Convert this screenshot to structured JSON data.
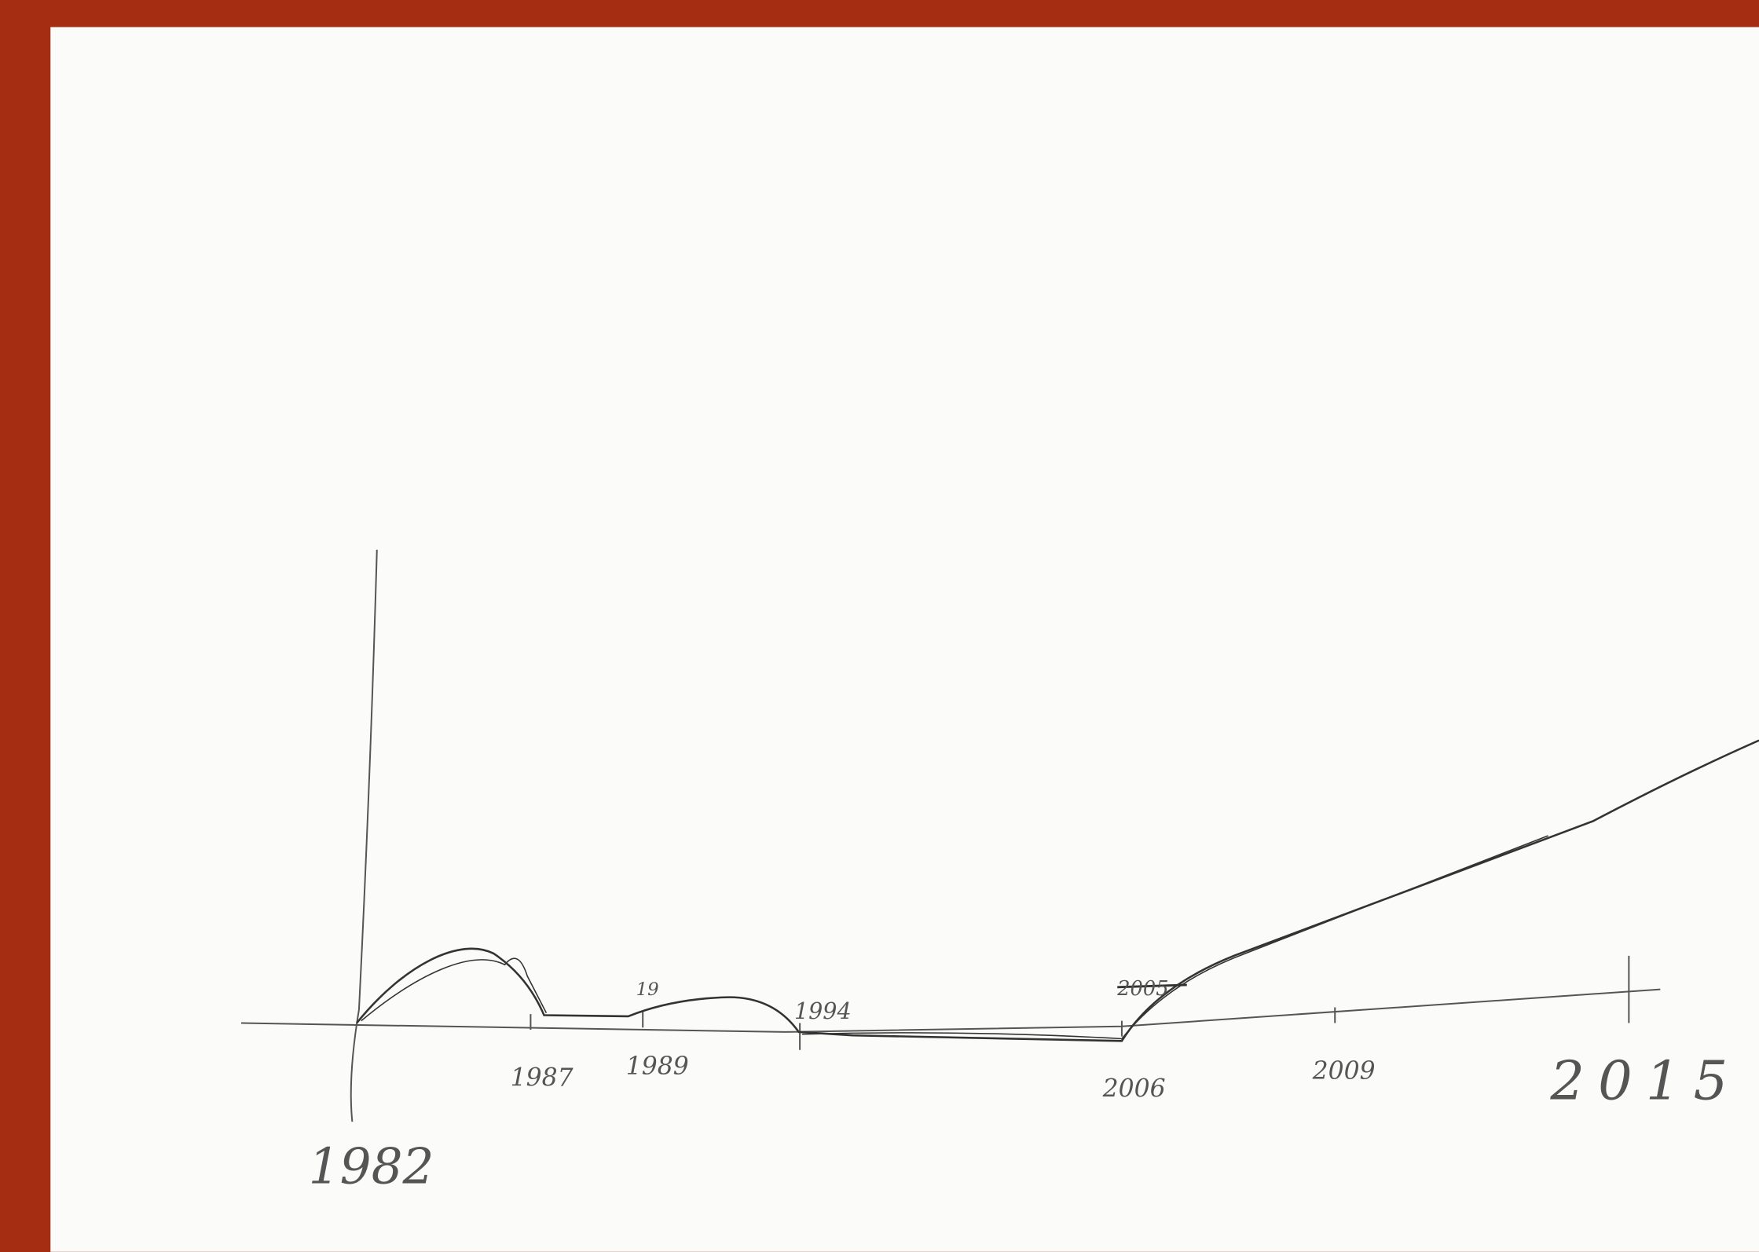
{
  "labels": [
    "1982",
    "1987",
    "19",
    "1989",
    "1994",
    "2005",
    "2006",
    "2009",
    "2015"
  ]
}
